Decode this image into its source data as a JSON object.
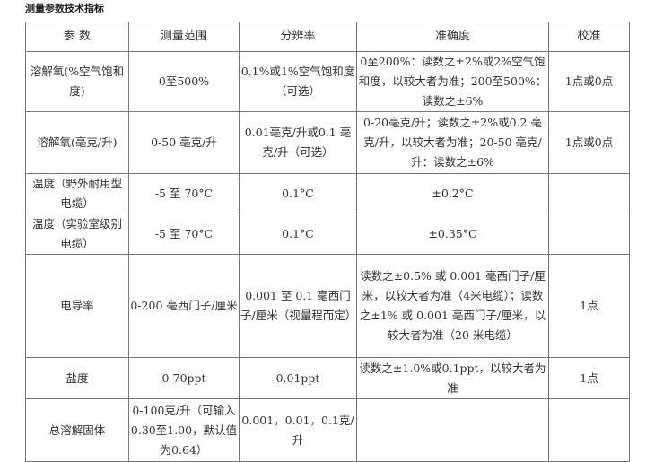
{
  "title": "测量参数技术指标",
  "headers": [
    "参 数",
    "测量范围",
    "分辨率",
    "准确度",
    "校准"
  ],
  "rows": [
    [
      "溶解氧(%空气饱和度)",
      "0至500%",
      "0.1%或1%空气饱和度（可选）",
      "0至200%：读数之±2%或2%空气饱和度，以较大者为准；200至500%：读数之±6%",
      "1点或0点"
    ],
    [
      "溶解氧(毫克/升)",
      "0-50 毫克/升",
      "0.01毫克/升或0.1 毫克/升（可选）",
      "0-20毫克/升；读数之±2%或0.2 毫克/升，以较大者为准；20-50 毫克/升：读数之±6%",
      "1点或0点"
    ],
    [
      "温度（野外耐用型电缆）",
      "-5 至 70°C",
      "0.1°C",
      "±0.2°C",
      ""
    ],
    [
      "温度（实验室级别电缆）",
      "-5 至 70°C",
      "0.1°C",
      "±0.35°C",
      ""
    ],
    [
      "电导率",
      "0-200 毫西门子/厘米",
      "0.001 至 0.1 毫西门子/厘米（视量程而定）",
      "读数之±0.5% 或 0.001 毫西门子/厘米，以较大者为准（4米电缆）；读数之±1% 或 0.001 毫西门子/厘米，以较大者为准（20 米电缆）",
      "1点"
    ],
    [
      "盐度",
      "0-70ppt",
      "0.01ppt",
      "读数之±1.0%或0.1ppt，以较大者为准",
      "1点"
    ],
    [
      "总溶解固体",
      "0-100克/升（可输入0.30至1.00，默认值为0.64）",
      "0.001，0.01，0.1克/升",
      "",
      ""
    ]
  ]
}
